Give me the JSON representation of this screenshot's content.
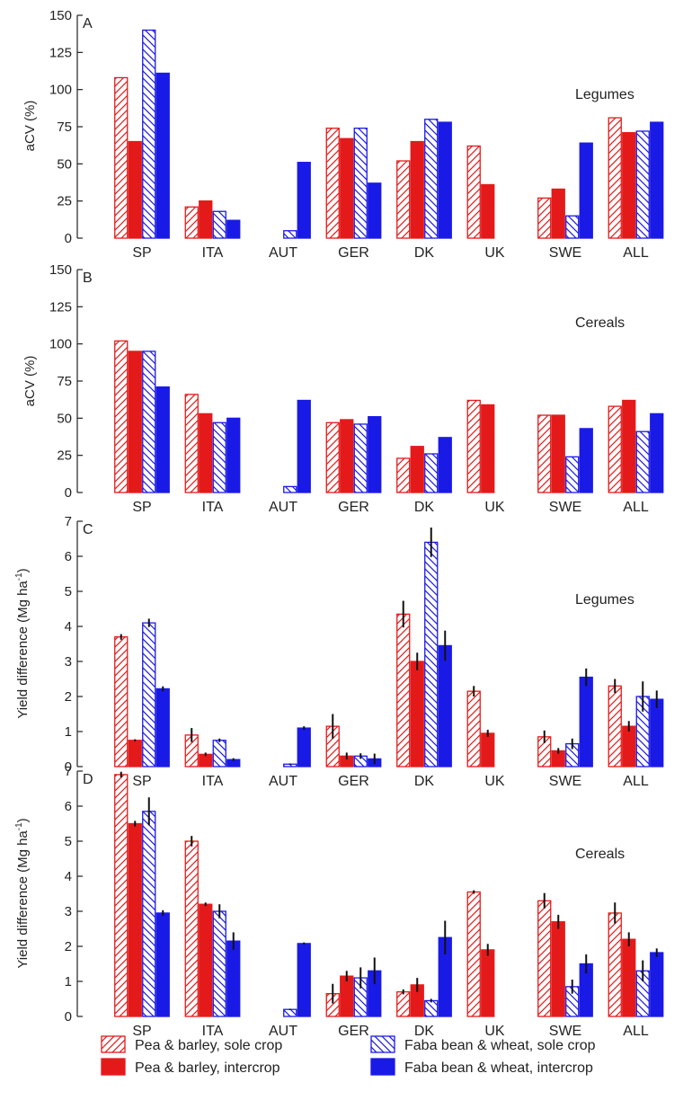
{
  "legend": [
    {
      "label": "Pea & barley, sole crop",
      "color": "#e41a1a",
      "pattern": "hatch"
    },
    {
      "label": "Faba bean & wheat, sole crop",
      "color": "#1a1ae6",
      "pattern": "hatch"
    },
    {
      "label": "Pea & barley, intercrop",
      "color": "#e41a1a",
      "pattern": "solid"
    },
    {
      "label": "Faba bean & wheat, intercrop",
      "color": "#1a1ae6",
      "pattern": "solid"
    }
  ],
  "chart_data": [
    {
      "type": "bar",
      "panel_label": "A",
      "annotation": "Legumes",
      "ylabel": "aCV (%)",
      "ylim": [
        0,
        150
      ],
      "yticks": [
        0,
        25,
        50,
        75,
        100,
        125,
        150
      ],
      "categories": [
        "SP",
        "ITA",
        "AUT",
        "GER",
        "DK",
        "UK",
        "SWE",
        "ALL"
      ],
      "series": [
        {
          "name": "Pea & barley, sole crop",
          "values": [
            108,
            21,
            null,
            74,
            52,
            62,
            27,
            81
          ]
        },
        {
          "name": "Pea & barley, intercrop",
          "values": [
            65,
            25,
            null,
            67,
            65,
            36,
            33,
            71
          ]
        },
        {
          "name": "Faba bean & wheat, sole crop",
          "values": [
            140,
            18,
            5,
            74,
            80,
            null,
            15,
            72
          ]
        },
        {
          "name": "Faba bean & wheat, intercrop",
          "values": [
            111,
            12,
            51,
            37,
            78,
            null,
            64,
            78
          ]
        }
      ]
    },
    {
      "type": "bar",
      "panel_label": "B",
      "annotation": "Cereals",
      "ylabel": "aCV (%)",
      "ylim": [
        0,
        150
      ],
      "yticks": [
        0,
        25,
        50,
        75,
        100,
        125,
        150
      ],
      "categories": [
        "SP",
        "ITA",
        "AUT",
        "GER",
        "DK",
        "UK",
        "SWE",
        "ALL"
      ],
      "series": [
        {
          "name": "Pea & barley, sole crop",
          "values": [
            102,
            66,
            null,
            47,
            23,
            62,
            52,
            58
          ]
        },
        {
          "name": "Pea & barley, intercrop",
          "values": [
            95,
            53,
            null,
            49,
            31,
            59,
            52,
            62
          ]
        },
        {
          "name": "Faba bean & wheat, sole crop",
          "values": [
            95,
            47,
            4,
            46,
            26,
            null,
            24,
            41
          ]
        },
        {
          "name": "Faba bean & wheat, intercrop",
          "values": [
            71,
            50,
            62,
            51,
            37,
            null,
            43,
            53
          ]
        }
      ]
    },
    {
      "type": "bar",
      "panel_label": "C",
      "annotation": "Legumes",
      "ylabel": "Yield difference (Mg ha-1)",
      "ylim": [
        0,
        7
      ],
      "yticks": [
        0,
        1,
        2,
        3,
        4,
        5,
        6,
        7
      ],
      "categories": [
        "SP",
        "ITA",
        "AUT",
        "GER",
        "DK",
        "UK",
        "SWE",
        "ALL"
      ],
      "series": [
        {
          "name": "Pea & barley, sole crop",
          "values": [
            3.7,
            0.9,
            null,
            1.15,
            4.35,
            2.15,
            0.85,
            2.3
          ],
          "errors": [
            0.08,
            0.2,
            null,
            0.35,
            0.38,
            0.15,
            0.18,
            0.2
          ]
        },
        {
          "name": "Pea & barley, intercrop",
          "values": [
            0.75,
            0.35,
            null,
            0.3,
            3.0,
            0.95,
            0.45,
            1.15
          ],
          "errors": [
            0.03,
            0.05,
            null,
            0.1,
            0.25,
            0.1,
            0.08,
            0.15
          ]
        },
        {
          "name": "Faba bean & wheat, sole crop",
          "values": [
            4.1,
            0.75,
            0.07,
            0.3,
            6.4,
            null,
            0.65,
            2.0
          ],
          "errors": [
            0.12,
            0.05,
            0.02,
            0.08,
            0.42,
            null,
            0.15,
            0.43
          ]
        },
        {
          "name": "Faba bean & wheat, intercrop",
          "values": [
            2.22,
            0.2,
            1.1,
            0.22,
            3.45,
            null,
            2.55,
            1.92
          ],
          "errors": [
            0.07,
            0.04,
            0.05,
            0.15,
            0.43,
            null,
            0.25,
            0.25
          ]
        }
      ]
    },
    {
      "type": "bar",
      "panel_label": "D",
      "annotation": "Cereals",
      "ylabel": "Yield difference (Mg ha-1)",
      "ylim": [
        0,
        7
      ],
      "yticks": [
        0,
        1,
        2,
        3,
        4,
        5,
        6,
        7
      ],
      "categories": [
        "SP",
        "ITA",
        "AUT",
        "GER",
        "DK",
        "UK",
        "SWE",
        "ALL"
      ],
      "series": [
        {
          "name": "Pea & barley, sole crop",
          "values": [
            6.9,
            5.0,
            null,
            0.65,
            0.7,
            3.55,
            3.3,
            2.95
          ],
          "errors": [
            0.08,
            0.15,
            null,
            0.28,
            0.07,
            0.05,
            0.22,
            0.3
          ]
        },
        {
          "name": "Pea & barley, intercrop",
          "values": [
            5.5,
            3.2,
            null,
            1.15,
            0.9,
            1.9,
            2.7,
            2.2
          ],
          "errors": [
            0.08,
            0.05,
            null,
            0.15,
            0.2,
            0.17,
            0.2,
            0.2
          ]
        },
        {
          "name": "Faba bean & wheat, sole crop",
          "values": [
            5.85,
            3.0,
            0.2,
            1.1,
            0.45,
            null,
            0.85,
            1.3
          ],
          "errors": [
            0.4,
            0.2,
            0.02,
            0.3,
            0.05,
            null,
            0.2,
            0.3
          ]
        },
        {
          "name": "Faba bean & wheat, intercrop",
          "values": [
            2.95,
            2.15,
            2.08,
            1.3,
            2.25,
            null,
            1.5,
            1.82
          ],
          "errors": [
            0.08,
            0.25,
            0.03,
            0.38,
            0.48,
            null,
            0.27,
            0.12
          ]
        }
      ]
    }
  ]
}
